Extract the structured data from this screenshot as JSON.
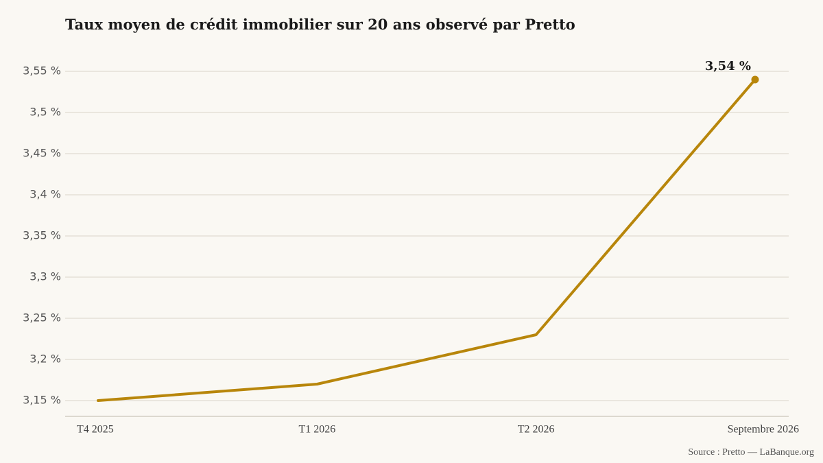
{
  "chart_data": {
    "type": "line",
    "title": "Taux moyen de crédit immobilier sur 20 ans observé par Pretto",
    "source": "Source : Pretto — LaBanque.org",
    "categories": [
      "T4 2025",
      "T1 2026",
      "T2 2026",
      "Septembre 2026"
    ],
    "series": [
      {
        "values": [
          3.15,
          3.17,
          3.23,
          3.54
        ],
        "color": "#b8860b"
      }
    ],
    "ylim": [
      3.15,
      3.55
    ],
    "yticks": [
      3.15,
      3.2,
      3.25,
      3.3,
      3.35,
      3.4,
      3.45,
      3.5,
      3.55
    ],
    "ytick_labels": [
      "3,15 %",
      "3,2 %",
      "3,25 %",
      "3,3 %",
      "3,35 %",
      "3,4 %",
      "3,45 %",
      "3,5 %",
      "3,55 %"
    ],
    "annotations": [
      {
        "category": "Septembre 2026",
        "value": 3.54,
        "text": "3,54 %"
      }
    ],
    "grid": true,
    "xlabel": "",
    "ylabel": ""
  }
}
